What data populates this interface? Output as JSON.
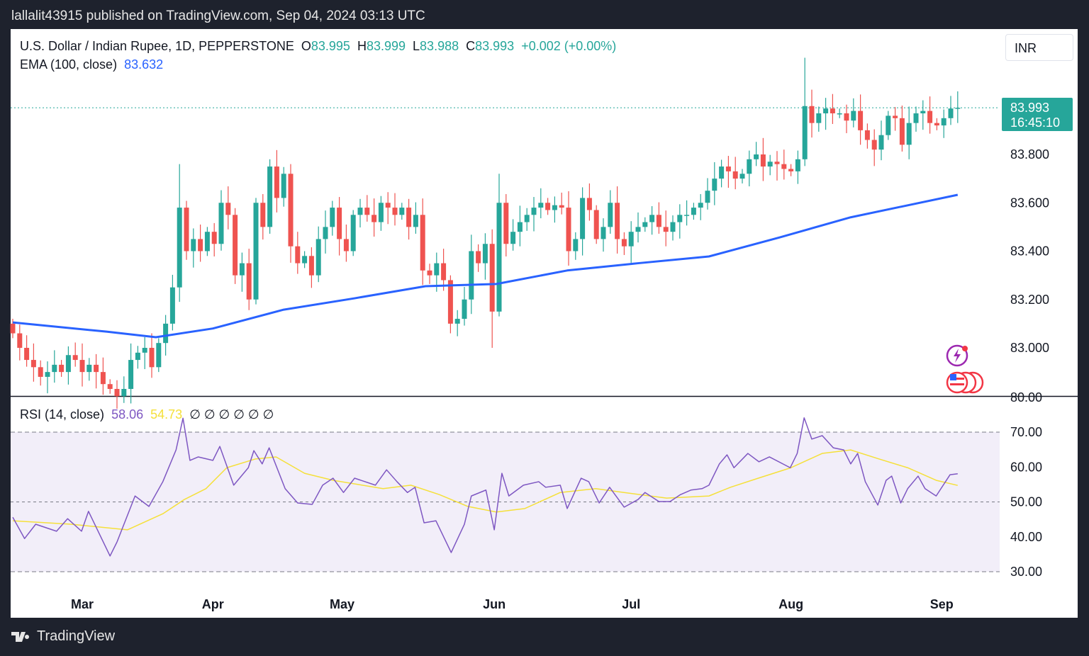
{
  "header": {
    "published": "lallalit43915 published on TradingView.com, Sep 04, 2024 03:13 UTC"
  },
  "legend": {
    "symbol": "U.S. Dollar / Indian Rupee, 1D, PEPPERSTONE",
    "o_label": "O",
    "o": "83.995",
    "h_label": "H",
    "h": "83.999",
    "l_label": "L",
    "l": "83.988",
    "c_label": "C",
    "c": "83.993",
    "change": "+0.002 (+0.00%)",
    "ema_label": "EMA (100, close)",
    "ema_value": "83.632",
    "rsi_label": "RSI (14, close)",
    "rsi_value": "58.06",
    "rsi_ma_value": "54.73",
    "rsi_extras": "∅ ∅ ∅ ∅ ∅ ∅"
  },
  "currency_button": "INR",
  "footer": {
    "brand": "TradingView"
  },
  "colors": {
    "up": "#26a69a",
    "down": "#ef5350",
    "ema": "#2962ff",
    "rsi": "#7e57c2",
    "rsi_ma": "#f5e03a"
  },
  "chart_data": [
    {
      "type": "candlestick",
      "title": "U.S. Dollar / Indian Rupee, 1D, PEPPERSTONE",
      "ylim": [
        82.8,
        84.2
      ],
      "y_ticks": [
        "83.000",
        "83.200",
        "83.400",
        "83.600",
        "83.800"
      ],
      "last_price": "83.993",
      "countdown": "16:45:10",
      "x_ticks": [
        {
          "label": "Mar",
          "bar": 10
        },
        {
          "label": "Apr",
          "bar": 28.8
        },
        {
          "label": "May",
          "bar": 47.4
        },
        {
          "label": "Jun",
          "bar": 69.3
        },
        {
          "label": "Jul",
          "bar": 89
        },
        {
          "label": "Aug",
          "bar": 112
        },
        {
          "label": "Sep",
          "bar": 133.7
        }
      ],
      "closes": [
        83.06,
        83.0,
        82.95,
        82.92,
        82.88,
        82.9,
        82.93,
        82.9,
        82.97,
        82.95,
        82.9,
        82.93,
        82.9,
        82.85,
        82.83,
        82.8,
        82.83,
        82.95,
        82.98,
        83.0,
        82.92,
        83.02,
        83.1,
        83.25,
        83.58,
        83.4,
        83.45,
        83.4,
        83.48,
        83.43,
        83.6,
        83.55,
        83.3,
        83.35,
        83.2,
        83.6,
        83.5,
        83.75,
        83.62,
        83.72,
        83.42,
        83.35,
        83.38,
        83.3,
        83.45,
        83.5,
        83.58,
        83.45,
        83.4,
        83.55,
        83.58,
        83.55,
        83.52,
        83.6,
        83.58,
        83.55,
        83.58,
        83.5,
        83.55,
        83.32,
        83.3,
        83.35,
        83.28,
        83.1,
        83.12,
        83.2,
        83.4,
        83.35,
        83.43,
        83.15,
        83.6,
        83.43,
        83.48,
        83.52,
        83.55,
        83.58,
        83.6,
        83.57,
        83.59,
        83.58,
        83.4,
        83.45,
        83.62,
        83.57,
        83.45,
        83.5,
        83.6,
        83.45,
        83.42,
        83.48,
        83.5,
        83.52,
        83.55,
        83.5,
        83.48,
        83.52,
        83.55,
        83.55,
        83.58,
        83.6,
        83.65,
        83.7,
        83.75,
        83.73,
        83.7,
        83.72,
        83.78,
        83.8,
        83.75,
        83.77,
        83.76,
        83.74,
        83.73,
        83.78,
        84.0,
        83.93,
        83.97,
        83.99,
        83.97,
        83.97,
        83.94,
        83.98,
        83.9,
        83.86,
        83.82,
        83.88,
        83.96,
        83.95,
        83.84,
        83.93,
        83.97,
        83.98,
        83.93,
        83.92,
        83.95,
        83.99,
        83.993
      ],
      "extremes": [
        {
          "bar": 24,
          "high": 83.76
        },
        {
          "bar": 40,
          "high": 83.76
        },
        {
          "bar": 37,
          "high": 83.78
        },
        {
          "bar": 69,
          "low": 83.0
        },
        {
          "bar": 70,
          "high": 83.72
        },
        {
          "bar": 114,
          "high": 84.2
        },
        {
          "bar": 63,
          "low": 83.06
        }
      ],
      "ema": {
        "name": "EMA (100, close)",
        "points": [
          [
            0,
            83.105
          ],
          [
            13.5,
            83.067
          ],
          [
            20.6,
            83.044
          ],
          [
            28.8,
            83.08
          ],
          [
            39,
            83.158
          ],
          [
            49.2,
            83.205
          ],
          [
            59.4,
            83.255
          ],
          [
            69.6,
            83.264
          ],
          [
            79.8,
            83.32
          ],
          [
            90,
            83.35
          ],
          [
            100.2,
            83.378
          ],
          [
            110.4,
            83.457
          ],
          [
            120.6,
            83.54
          ],
          [
            136,
            83.633
          ]
        ]
      }
    },
    {
      "type": "line",
      "title": "RSI (14, close)",
      "ylim": [
        30,
        70
      ],
      "y_ticks": [
        "30.00",
        "40.00",
        "50.00",
        "60.00",
        "70.00",
        "80.00"
      ],
      "bands": [
        30,
        50,
        70
      ],
      "series": [
        {
          "name": "RSI",
          "points": [
            [
              0,
              45.6
            ],
            [
              1.7,
              39.5
            ],
            [
              3.3,
              43.6
            ],
            [
              6.3,
              41.6
            ],
            [
              7.9,
              45.2
            ],
            [
              9.9,
              41.6
            ],
            [
              10.9,
              47.3
            ],
            [
              14,
              34.5
            ],
            [
              15,
              38.5
            ],
            [
              17.6,
              51.7
            ],
            [
              19.6,
              48.7
            ],
            [
              21.6,
              55.8
            ],
            [
              23.5,
              64.9
            ],
            [
              24.5,
              74
            ],
            [
              25.5,
              61.9
            ],
            [
              26.7,
              62.9
            ],
            [
              28.8,
              61.9
            ],
            [
              29.8,
              65.9
            ],
            [
              31.8,
              54.8
            ],
            [
              33.9,
              59.8
            ],
            [
              34.7,
              64.7
            ],
            [
              35.9,
              60.9
            ],
            [
              36.9,
              65.5
            ],
            [
              39.2,
              53.8
            ],
            [
              41,
              49.7
            ],
            [
              43.1,
              49.3
            ],
            [
              44.6,
              54.8
            ],
            [
              46.1,
              56.8
            ],
            [
              47.6,
              52.7
            ],
            [
              49.2,
              56.8
            ],
            [
              52.2,
              54.8
            ],
            [
              53.8,
              59.2
            ],
            [
              55.3,
              55.8
            ],
            [
              56.8,
              52.7
            ],
            [
              57.9,
              54.2
            ],
            [
              59.2,
              44
            ],
            [
              60.9,
              44.6
            ],
            [
              63.1,
              35.5
            ],
            [
              65,
              43.6
            ],
            [
              66,
              51.7
            ],
            [
              68.1,
              53.4
            ],
            [
              69.3,
              42
            ],
            [
              70.4,
              58.2
            ],
            [
              71.4,
              51.7
            ],
            [
              73.5,
              54.8
            ],
            [
              75.7,
              55.8
            ],
            [
              76.7,
              54.2
            ],
            [
              78.8,
              54.8
            ],
            [
              79.8,
              48.1
            ],
            [
              81.8,
              56.8
            ],
            [
              82.9,
              55.8
            ],
            [
              84.4,
              49.7
            ],
            [
              85.9,
              54.2
            ],
            [
              88,
              48.5
            ],
            [
              90,
              50.7
            ],
            [
              91,
              52.7
            ],
            [
              93,
              50.1
            ],
            [
              94.6,
              50.1
            ],
            [
              96.1,
              52.1
            ],
            [
              97.6,
              53.4
            ],
            [
              99.2,
              53.8
            ],
            [
              100.2,
              54.8
            ],
            [
              101.7,
              60.9
            ],
            [
              102.8,
              63.5
            ],
            [
              103.8,
              59.8
            ],
            [
              105.8,
              63.9
            ],
            [
              107.4,
              61.5
            ],
            [
              108.9,
              62.9
            ],
            [
              111.9,
              59.8
            ],
            [
              112.9,
              63.9
            ],
            [
              113.9,
              74.1
            ],
            [
              115,
              68
            ],
            [
              116.5,
              69
            ],
            [
              118.1,
              65.5
            ],
            [
              119.6,
              64.9
            ],
            [
              120.6,
              60.9
            ],
            [
              121.6,
              63.9
            ],
            [
              122.7,
              55.8
            ],
            [
              124.5,
              49.1
            ],
            [
              125.7,
              56.2
            ],
            [
              126.5,
              57.4
            ],
            [
              127.8,
              49.7
            ],
            [
              128.8,
              53.8
            ],
            [
              130.3,
              57.4
            ],
            [
              131.3,
              53.8
            ],
            [
              132.9,
              51.7
            ],
            [
              134.9,
              57.8
            ],
            [
              136,
              58.06
            ]
          ]
        },
        {
          "name": "RSI-based MA",
          "points": [
            [
              0,
              44.6
            ],
            [
              8.4,
              43.6
            ],
            [
              16.5,
              42
            ],
            [
              21.6,
              46.6
            ],
            [
              24.7,
              50.7
            ],
            [
              27.8,
              53.8
            ],
            [
              30.8,
              59.8
            ],
            [
              34.9,
              62.3
            ],
            [
              37.9,
              62.9
            ],
            [
              42,
              58.2
            ],
            [
              46.1,
              56.2
            ],
            [
              53.3,
              53.8
            ],
            [
              57.3,
              54.8
            ],
            [
              61.4,
              52.1
            ],
            [
              65.5,
              48.7
            ],
            [
              69.6,
              47.1
            ],
            [
              73.7,
              48.1
            ],
            [
              78.8,
              52.7
            ],
            [
              83.9,
              53.8
            ],
            [
              88,
              52.7
            ],
            [
              94.1,
              51.1
            ],
            [
              100.2,
              51.7
            ],
            [
              103.3,
              54.2
            ],
            [
              107.3,
              56.8
            ],
            [
              112,
              59.8
            ],
            [
              116.5,
              63.9
            ],
            [
              120.6,
              64.9
            ],
            [
              124.7,
              62.3
            ],
            [
              128.8,
              59.8
            ],
            [
              132.9,
              56.2
            ],
            [
              136,
              54.73
            ]
          ]
        }
      ]
    }
  ]
}
